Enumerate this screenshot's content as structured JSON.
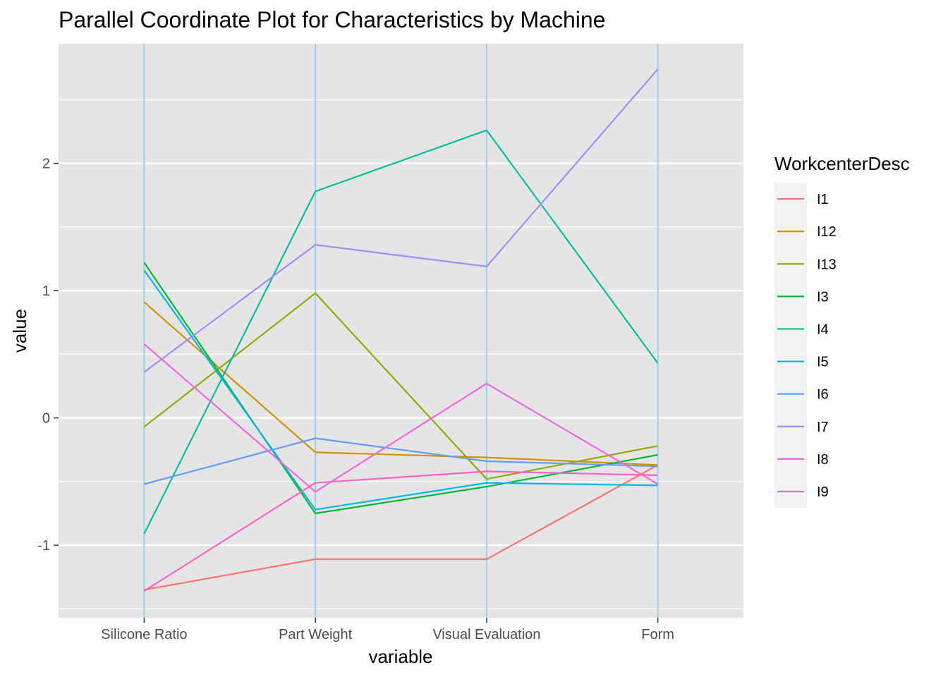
{
  "chart_data": {
    "type": "line",
    "subtype": "parallel-coordinates",
    "title": "Parallel Coordinate Plot for Characteristics by Machine",
    "xlabel": "variable",
    "ylabel": "value",
    "categories": [
      "Silicone Ratio",
      "Part Weight",
      "Visual Evaluation",
      "Form"
    ],
    "ylim": [
      -1.57,
      2.94
    ],
    "yticks": [
      -1,
      0,
      1,
      2
    ],
    "ytick_labels": [
      "-1",
      "0",
      "1",
      "2"
    ],
    "grid": true,
    "axis_line_color": "#9fd3e6",
    "background_color": "#e5e5e5",
    "legend": {
      "title": "WorkcenterDesc",
      "position": "right"
    },
    "series": [
      {
        "name": "I1",
        "color": "#F8766D",
        "values": [
          -1.35,
          -1.11,
          -1.11,
          -0.37
        ]
      },
      {
        "name": "I12",
        "color": "#D39200",
        "values": [
          0.91,
          -0.27,
          -0.31,
          -0.37
        ]
      },
      {
        "name": "I13",
        "color": "#93AA00",
        "values": [
          -0.07,
          0.98,
          -0.48,
          -0.22
        ]
      },
      {
        "name": "I3",
        "color": "#00BA38",
        "values": [
          1.22,
          -0.75,
          -0.54,
          -0.29
        ]
      },
      {
        "name": "I4",
        "color": "#00C19F",
        "values": [
          -0.91,
          1.78,
          2.26,
          0.43
        ]
      },
      {
        "name": "I5",
        "color": "#00B9E3",
        "values": [
          1.16,
          -0.72,
          -0.51,
          -0.53
        ]
      },
      {
        "name": "I6",
        "color": "#619CFF",
        "values": [
          -0.52,
          -0.16,
          -0.34,
          -0.38
        ]
      },
      {
        "name": "I7",
        "color": "#A58AFF",
        "values": [
          0.36,
          1.36,
          1.19,
          2.74
        ]
      },
      {
        "name": "I8",
        "color": "#F564E3",
        "values": [
          0.58,
          -0.58,
          0.27,
          -0.52
        ]
      },
      {
        "name": "I9",
        "color": "#FF61C3",
        "values": [
          -1.36,
          -0.51,
          -0.42,
          -0.45
        ]
      }
    ]
  }
}
